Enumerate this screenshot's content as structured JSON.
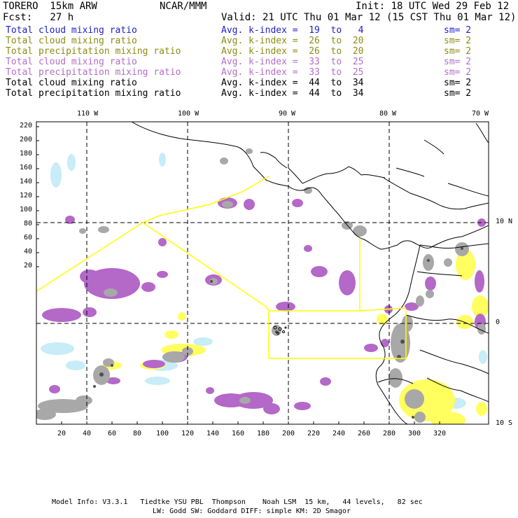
{
  "header": {
    "model": "TORERO  15km ARW",
    "center": "NCAR/MMM",
    "init": "Init: 18 UTC Wed 29 Feb 12",
    "fcst": "Fcst:   27 h",
    "valid": "Valid: 21 UTC Thu 01 Mar 12 (15 CST Thu 01 Mar 12)"
  },
  "legend": [
    {
      "field": "Total cloud mixing ratio",
      "kindex": "Avg. k-index =  19  to   4",
      "sm": "sm= 2",
      "color": "#1f1fc8"
    },
    {
      "field": "Total cloud mixing ratio",
      "kindex": "Avg. k-index =  26  to  20",
      "sm": "sm= 2",
      "color": "#8c8c14"
    },
    {
      "field": "Total precipitation mixing ratio",
      "kindex": "Avg. k-index =  26  to  20",
      "sm": "sm= 2",
      "color": "#8c8c14"
    },
    {
      "field": "Total cloud mixing ratio",
      "kindex": "Avg. k-index =  33  to  25",
      "sm": "sm= 2",
      "color": "#b46ec8"
    },
    {
      "field": "Total precipitation mixing ratio",
      "kindex": "Avg. k-index =  33  to  25",
      "sm": "sm= 2",
      "color": "#b46ec8"
    },
    {
      "field": "Total cloud mixing ratio",
      "kindex": "Avg. k-index =  44  to  34",
      "sm": "sm= 2",
      "color": "#000000"
    },
    {
      "field": "Total precipitation mixing ratio",
      "kindex": "Avg. k-index =  44  to  34",
      "sm": "sm= 2",
      "color": "#000000"
    }
  ],
  "top_lon_labels": [
    "110 W",
    "100 W",
    "90 W",
    "80 W",
    "70 W"
  ],
  "right_lat_labels": [
    "10 N",
    "0",
    "10 S"
  ],
  "left_ticks": [
    "220",
    "200",
    "180",
    "160",
    "140",
    "120",
    "100",
    "80",
    "60",
    "40",
    "20"
  ],
  "bottom_ticks": [
    "20",
    "40",
    "60",
    "80",
    "100",
    "120",
    "140",
    "160",
    "180",
    "200",
    "220",
    "240",
    "260",
    "280",
    "300",
    "320"
  ],
  "footer": {
    "line1": "Model Info: V3.3.1   Tiedtke YSU PBL  Thompson    Noah LSM  15 km,   44 levels,   82 sec",
    "line2": "LW: Godd SW: Goddard DIFF: simple KM: 2D Smagor"
  },
  "colors": {
    "gray": "#a8a8a8",
    "dark": "#505050",
    "purple": "#b468c8",
    "yellow": "#ffff60",
    "cyan": "#c8ecf8",
    "boxline": "#ffff00"
  }
}
